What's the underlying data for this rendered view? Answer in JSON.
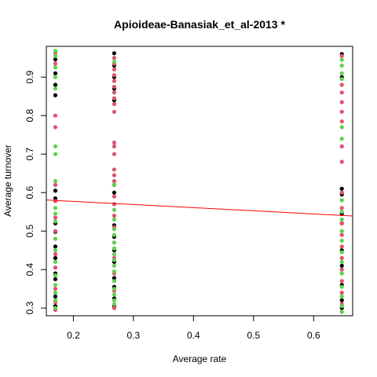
{
  "chart_data": {
    "type": "scatter",
    "title": "Apioideae-Banasiak_et_al-2013 *",
    "xlabel": "Average rate",
    "ylabel": "Average turnover",
    "xlim": [
      0.155,
      0.665
    ],
    "ylim": [
      0.28,
      0.98
    ],
    "xticks": [
      0.2,
      0.3,
      0.4,
      0.5,
      0.6
    ],
    "xtick_labels": [
      "0.2",
      "0.3",
      "0.4",
      "0.5",
      "0.6"
    ],
    "yticks": [
      0.3,
      0.4,
      0.5,
      0.6,
      0.7,
      0.8,
      0.9
    ],
    "ytick_labels": [
      "0.3",
      "0.4",
      "0.5",
      "0.6",
      "0.7",
      "0.8",
      "0.9"
    ],
    "colors": {
      "black": "#000000",
      "red": "#df536b",
      "green": "#61d04f",
      "fit": "#ff0000"
    },
    "fit_line": {
      "intercept": 0.5935,
      "slope": -0.0817
    },
    "series": [
      {
        "name": "black",
        "color": "#000000",
        "points": [
          [
            0.17,
            0.946
          ],
          [
            0.17,
            0.91
          ],
          [
            0.17,
            0.88
          ],
          [
            0.17,
            0.853
          ],
          [
            0.17,
            0.605
          ],
          [
            0.17,
            0.585
          ],
          [
            0.17,
            0.52
          ],
          [
            0.17,
            0.498
          ],
          [
            0.17,
            0.46
          ],
          [
            0.17,
            0.43
          ],
          [
            0.17,
            0.39
          ],
          [
            0.17,
            0.375
          ],
          [
            0.17,
            0.33
          ],
          [
            0.17,
            0.305
          ],
          [
            0.268,
            0.962
          ],
          [
            0.268,
            0.93
          ],
          [
            0.268,
            0.9
          ],
          [
            0.268,
            0.87
          ],
          [
            0.268,
            0.84
          ],
          [
            0.268,
            0.62
          ],
          [
            0.268,
            0.6
          ],
          [
            0.268,
            0.515
          ],
          [
            0.268,
            0.485
          ],
          [
            0.268,
            0.45
          ],
          [
            0.268,
            0.42
          ],
          [
            0.268,
            0.378
          ],
          [
            0.268,
            0.355
          ],
          [
            0.268,
            0.325
          ],
          [
            0.268,
            0.305
          ],
          [
            0.647,
            0.96
          ],
          [
            0.647,
            0.9
          ],
          [
            0.647,
            0.61
          ],
          [
            0.647,
            0.595
          ],
          [
            0.647,
            0.545
          ],
          [
            0.647,
            0.52
          ],
          [
            0.647,
            0.45
          ],
          [
            0.647,
            0.41
          ],
          [
            0.647,
            0.36
          ],
          [
            0.647,
            0.32
          ],
          [
            0.647,
            0.3
          ]
        ]
      },
      {
        "name": "red",
        "color": "#df536b",
        "points": [
          [
            0.17,
            0.963
          ],
          [
            0.17,
            0.935
          ],
          [
            0.17,
            0.8
          ],
          [
            0.17,
            0.77
          ],
          [
            0.17,
            0.62
          ],
          [
            0.17,
            0.578
          ],
          [
            0.17,
            0.535
          ],
          [
            0.17,
            0.5
          ],
          [
            0.17,
            0.44
          ],
          [
            0.17,
            0.405
          ],
          [
            0.17,
            0.35
          ],
          [
            0.17,
            0.315
          ],
          [
            0.17,
            0.295
          ],
          [
            0.268,
            0.95
          ],
          [
            0.268,
            0.935
          ],
          [
            0.268,
            0.92
          ],
          [
            0.268,
            0.905
          ],
          [
            0.268,
            0.89
          ],
          [
            0.268,
            0.875
          ],
          [
            0.268,
            0.86
          ],
          [
            0.268,
            0.845
          ],
          [
            0.268,
            0.83
          ],
          [
            0.268,
            0.81
          ],
          [
            0.268,
            0.73
          ],
          [
            0.268,
            0.72
          ],
          [
            0.268,
            0.7
          ],
          [
            0.268,
            0.66
          ],
          [
            0.268,
            0.645
          ],
          [
            0.268,
            0.63
          ],
          [
            0.268,
            0.59
          ],
          [
            0.268,
            0.57
          ],
          [
            0.268,
            0.54
          ],
          [
            0.268,
            0.51
          ],
          [
            0.268,
            0.47
          ],
          [
            0.268,
            0.43
          ],
          [
            0.268,
            0.39
          ],
          [
            0.268,
            0.345
          ],
          [
            0.268,
            0.3
          ],
          [
            0.647,
            0.955
          ],
          [
            0.647,
            0.88
          ],
          [
            0.647,
            0.86
          ],
          [
            0.647,
            0.835
          ],
          [
            0.647,
            0.81
          ],
          [
            0.647,
            0.785
          ],
          [
            0.647,
            0.72
          ],
          [
            0.647,
            0.68
          ],
          [
            0.647,
            0.6
          ],
          [
            0.647,
            0.56
          ],
          [
            0.647,
            0.52
          ],
          [
            0.647,
            0.49
          ],
          [
            0.647,
            0.46
          ],
          [
            0.647,
            0.43
          ],
          [
            0.647,
            0.4
          ],
          [
            0.647,
            0.37
          ],
          [
            0.647,
            0.34
          ],
          [
            0.647,
            0.31
          ]
        ]
      },
      {
        "name": "green",
        "color": "#61d04f",
        "points": [
          [
            0.17,
            0.968
          ],
          [
            0.17,
            0.955
          ],
          [
            0.17,
            0.925
          ],
          [
            0.17,
            0.9
          ],
          [
            0.17,
            0.87
          ],
          [
            0.17,
            0.72
          ],
          [
            0.17,
            0.7
          ],
          [
            0.17,
            0.63
          ],
          [
            0.17,
            0.56
          ],
          [
            0.17,
            0.545
          ],
          [
            0.17,
            0.525
          ],
          [
            0.17,
            0.48
          ],
          [
            0.17,
            0.45
          ],
          [
            0.17,
            0.42
          ],
          [
            0.17,
            0.385
          ],
          [
            0.17,
            0.36
          ],
          [
            0.17,
            0.34
          ],
          [
            0.17,
            0.32
          ],
          [
            0.17,
            0.3
          ],
          [
            0.268,
            0.94
          ],
          [
            0.268,
            0.62
          ],
          [
            0.268,
            0.555
          ],
          [
            0.268,
            0.53
          ],
          [
            0.268,
            0.505
          ],
          [
            0.268,
            0.49
          ],
          [
            0.268,
            0.47
          ],
          [
            0.268,
            0.455
          ],
          [
            0.268,
            0.44
          ],
          [
            0.268,
            0.425
          ],
          [
            0.268,
            0.41
          ],
          [
            0.268,
            0.395
          ],
          [
            0.268,
            0.37
          ],
          [
            0.268,
            0.35
          ],
          [
            0.268,
            0.335
          ],
          [
            0.268,
            0.32
          ],
          [
            0.268,
            0.31
          ],
          [
            0.647,
            0.945
          ],
          [
            0.647,
            0.93
          ],
          [
            0.647,
            0.91
          ],
          [
            0.647,
            0.895
          ],
          [
            0.647,
            0.77
          ],
          [
            0.647,
            0.74
          ],
          [
            0.647,
            0.58
          ],
          [
            0.647,
            0.55
          ],
          [
            0.647,
            0.53
          ],
          [
            0.647,
            0.5
          ],
          [
            0.647,
            0.475
          ],
          [
            0.647,
            0.445
          ],
          [
            0.647,
            0.42
          ],
          [
            0.647,
            0.39
          ],
          [
            0.647,
            0.355
          ],
          [
            0.647,
            0.33
          ],
          [
            0.647,
            0.305
          ],
          [
            0.647,
            0.29
          ]
        ]
      }
    ]
  }
}
